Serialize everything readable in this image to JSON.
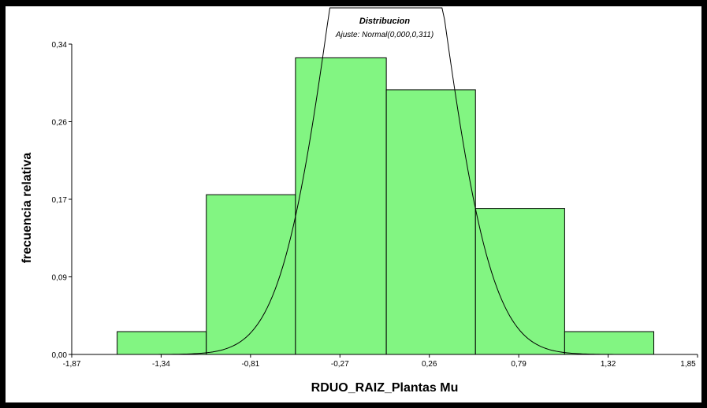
{
  "chart_data": {
    "type": "bar",
    "title": "Distribucion",
    "subtitle": "Ajuste: Normal(0,000,0,311)",
    "xlabel": "RDUO_RAIZ_Plantas Mu",
    "ylabel": "frecuencia relativa",
    "xlim": [
      -1.87,
      1.85
    ],
    "ylim": [
      0.0,
      0.34
    ],
    "x_ticks": [
      "-1,87",
      "-1,34",
      "-0,81",
      "-0,27",
      "0,26",
      "0,79",
      "1,32",
      "1,85"
    ],
    "y_ticks": [
      "0,00",
      "0,09",
      "0,17",
      "0,26",
      "0,34"
    ],
    "bin_edges": [
      -1.6,
      -1.07,
      -0.54,
      0.0,
      0.53,
      1.06,
      1.59
    ],
    "values": [
      0.025,
      0.175,
      0.325,
      0.29,
      0.16,
      0.025
    ],
    "fit": {
      "distribution": "Normal",
      "mean": 0.0,
      "sd": 0.311
    },
    "bar_color": "#82F582",
    "grid": false
  }
}
